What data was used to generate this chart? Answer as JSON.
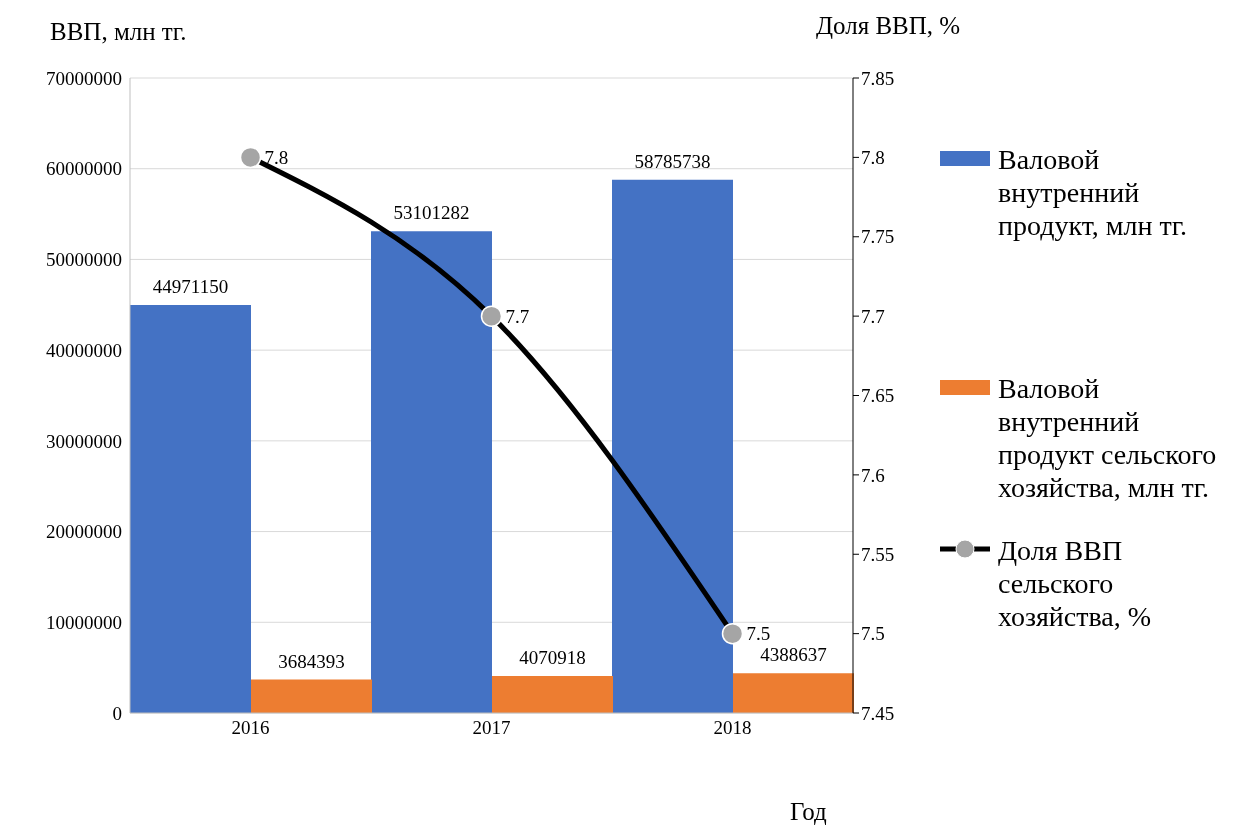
{
  "chart_data": {
    "type": "bar",
    "ylabel": "ВВП, млн тг.",
    "y2label": "Доля ВВП, %",
    "xlabel": "Год",
    "categories": [
      "2016",
      "2017",
      "2018"
    ],
    "series": [
      {
        "name": "Валовой внутренний продукт, млн тг.",
        "color": "#4472c4",
        "values": [
          44971150,
          53101282,
          58785738
        ]
      },
      {
        "name": "Валовой внутренний продукт сельского хозяйства, млн тг.",
        "color": "#ed7d31",
        "values": [
          3684393,
          4070918,
          4388637
        ]
      },
      {
        "name": "Доля ВВП сельского хозяйства, %",
        "type": "line",
        "axis": "y2",
        "color": "#000000",
        "values": [
          7.8,
          7.7,
          7.5
        ]
      }
    ],
    "ylim": [
      0,
      70000000
    ],
    "yticks": [
      0,
      10000000,
      20000000,
      30000000,
      40000000,
      50000000,
      60000000,
      70000000
    ],
    "y2lim": [
      7.45,
      7.85
    ],
    "y2ticks": [
      7.45,
      7.5,
      7.55,
      7.6,
      7.65,
      7.7,
      7.75,
      7.8,
      7.85
    ],
    "grid": "y",
    "legend": "right",
    "data_labels": true,
    "marker": "circle"
  }
}
